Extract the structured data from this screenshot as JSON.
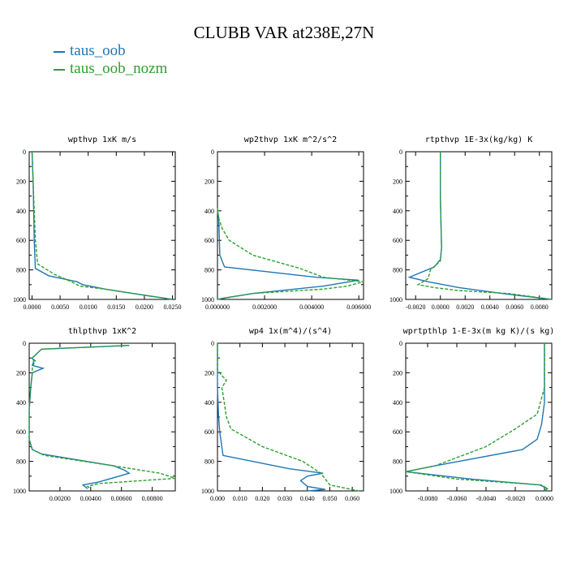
{
  "title": "CLUBB VAR at238E,27N",
  "legend": [
    {
      "name": "taus_oob",
      "color": "#1f77b4",
      "dash": "solid"
    },
    {
      "name": "taus_oob_nozm",
      "color": "#2ca02c",
      "dash": "dashed"
    }
  ],
  "chart_data": [
    {
      "type": "line",
      "title": "wpthvp  1xK m/s",
      "xlim": [
        -0.0005,
        0.0255
      ],
      "ylim": [
        1000,
        0
      ],
      "xticks": [
        0.0,
        0.005,
        0.01,
        0.015,
        0.02,
        0.025
      ],
      "xticklabels": [
        "0.0000",
        "0.0050",
        "0.0100",
        "0.0150",
        "0.0200",
        "0.0250"
      ],
      "yticks": [
        0,
        200,
        400,
        600,
        800,
        1000
      ],
      "series": [
        {
          "name": "taus_oob",
          "x": [
            0.0,
            0.0002,
            0.0003,
            0.0004,
            0.0006,
            0.003,
            0.008,
            0.009,
            0.013,
            0.018,
            0.025
          ],
          "y": [
            0,
            200,
            400,
            600,
            790,
            840,
            880,
            900,
            930,
            960,
            1000
          ]
        },
        {
          "name": "taus_oob_nozm",
          "x": [
            0.0,
            0.0002,
            0.0004,
            0.0006,
            0.001,
            0.004,
            0.007,
            0.0085,
            0.013,
            0.018,
            0.025
          ],
          "y": [
            0,
            200,
            400,
            600,
            760,
            830,
            880,
            910,
            930,
            960,
            1000
          ]
        }
      ]
    },
    {
      "type": "line",
      "title": "wp2thvp  1xK m^2/s^2",
      "xlim": [
        0,
        0.0062
      ],
      "ylim": [
        1000,
        0
      ],
      "xticks": [
        0,
        0.002,
        0.004,
        0.006
      ],
      "xticklabels": [
        "0.000000",
        "0.002000",
        "0.004000",
        "0.006000"
      ],
      "yticks": [
        0,
        200,
        400,
        600,
        800,
        1000
      ],
      "series": [
        {
          "name": "taus_oob",
          "x": [
            0.0,
            5e-05,
            0.0001,
            0.0003,
            0.0042,
            0.006,
            0.0045,
            0.0015,
            0.0003,
            0.0
          ],
          "y": [
            400,
            450,
            700,
            780,
            850,
            870,
            910,
            960,
            990,
            1000
          ]
        },
        {
          "name": "taus_oob_nozm",
          "x": [
            0.0,
            5e-05,
            0.0002,
            0.0005,
            0.0015,
            0.0035,
            0.0045,
            0.0062,
            0.0055,
            0.0045,
            0.0015,
            0.0
          ],
          "y": [
            380,
            450,
            520,
            600,
            700,
            790,
            850,
            880,
            910,
            930,
            960,
            1000
          ]
        }
      ]
    },
    {
      "type": "line",
      "title": "rtpthvp  1E-3x(kg/kg) K",
      "xlim": [
        -0.0028,
        0.009
      ],
      "ylim": [
        1000,
        0
      ],
      "xticks": [
        -0.002,
        0.0,
        0.002,
        0.004,
        0.006,
        0.008
      ],
      "xticklabels": [
        "-0.0020",
        "0.0000",
        "0.0020",
        "0.0040",
        "0.0060",
        "0.0080"
      ],
      "yticks": [
        0,
        200,
        400,
        600,
        800,
        1000
      ],
      "series": [
        {
          "name": "taus_oob",
          "x": [
            0.0,
            0.0,
            5e-05,
            0.0001,
            0.0,
            -0.0005,
            -0.0025,
            -0.001,
            0.0015,
            0.005,
            0.009
          ],
          "y": [
            0,
            300,
            500,
            650,
            730,
            780,
            850,
            880,
            920,
            960,
            1000
          ]
        },
        {
          "name": "taus_oob_nozm",
          "x": [
            0.0,
            0.0,
            5e-05,
            0.0001,
            0.0,
            -0.0008,
            -0.001,
            -0.0018,
            -0.0005,
            0.0015,
            0.0055,
            0.009
          ],
          "y": [
            0,
            300,
            500,
            650,
            740,
            800,
            860,
            900,
            920,
            940,
            960,
            1000
          ]
        }
      ]
    },
    {
      "type": "line",
      "title": "thlpthvp  1xK^2",
      "xlim": [
        0,
        0.0095
      ],
      "ylim": [
        1000,
        0
      ],
      "xticks": [
        0.002,
        0.004,
        0.006,
        0.008
      ],
      "xticklabels": [
        "0.00200",
        "0.00400",
        "0.00600",
        "0.00800"
      ],
      "yticks": [
        0,
        200,
        400,
        600,
        800,
        1000
      ],
      "series": [
        {
          "name": "taus_oob",
          "x": [
            0.0065,
            0.0008,
            0.0002,
            0.0003,
            0.0002,
            0.0009,
            0.0002,
            0.0001,
            0.0,
            0.0,
            0.0002,
            0.0008,
            0.0055,
            0.0062,
            0.0065,
            0.0045,
            0.0035,
            0.0038
          ],
          "y": [
            15,
            40,
            100,
            120,
            150,
            170,
            200,
            300,
            450,
            650,
            720,
            750,
            830,
            860,
            880,
            940,
            960,
            985
          ]
        },
        {
          "name": "taus_oob_nozm",
          "x": [
            0.0065,
            0.0008,
            0.0002,
            0.0004,
            0.0002,
            0.0002,
            0.0001,
            0.0,
            0.0,
            0.0002,
            0.001,
            0.0055,
            0.0085,
            0.0095,
            0.0045,
            0.0038,
            0.004
          ],
          "y": [
            15,
            40,
            100,
            120,
            160,
            200,
            300,
            450,
            650,
            720,
            760,
            830,
            880,
            915,
            950,
            970,
            985
          ]
        }
      ]
    },
    {
      "type": "line",
      "title": "wp4  1x(m^4)/(s^4)",
      "xlim": [
        0,
        0.065
      ],
      "ylim": [
        1000,
        0
      ],
      "xticks": [
        0,
        0.01,
        0.02,
        0.03,
        0.04,
        0.05,
        0.06
      ],
      "xticklabels": [
        "0.000",
        "0.010",
        "0.020",
        "0.030",
        "0.040",
        "0.050",
        "0.060"
      ],
      "yticks": [
        0,
        200,
        400,
        600,
        800,
        1000
      ],
      "series": [
        {
          "name": "taus_oob",
          "x": [
            0.0,
            0.0,
            0.0005,
            0.001,
            0.0025,
            0.032,
            0.047,
            0.04,
            0.037,
            0.04,
            0.048,
            0.04
          ],
          "y": [
            0,
            300,
            500,
            600,
            760,
            850,
            880,
            900,
            930,
            970,
            990,
            1000
          ]
        },
        {
          "name": "taus_oob_nozm",
          "x": [
            0.0,
            0.0,
            0.002,
            0.004,
            0.002,
            0.003,
            0.004,
            0.006,
            0.02,
            0.038,
            0.046,
            0.05,
            0.063
          ],
          "y": [
            0,
            180,
            220,
            250,
            300,
            400,
            500,
            580,
            700,
            800,
            880,
            960,
            1000
          ]
        }
      ]
    },
    {
      "type": "line",
      "title": "wprtpthlp  1-E-3x(m kg K)/(s kg)",
      "xlim": [
        -0.0095,
        0.0005
      ],
      "ylim": [
        1000,
        0
      ],
      "xticks": [
        -0.008,
        -0.006,
        -0.004,
        -0.002,
        0.0
      ],
      "xticklabels": [
        "-0.0080",
        "-0.0060",
        "-0.0040",
        "-0.0020",
        "0.0000"
      ],
      "yticks": [
        0,
        200,
        400,
        600,
        800,
        1000
      ],
      "series": [
        {
          "name": "taus_oob",
          "x": [
            0.0,
            0.0,
            -0.0002,
            -0.0005,
            -0.0015,
            -0.0075,
            -0.0095,
            -0.005,
            -0.0003,
            0.0002,
            0.0
          ],
          "y": [
            0,
            400,
            550,
            650,
            720,
            830,
            870,
            920,
            960,
            985,
            1000
          ]
        },
        {
          "name": "taus_oob_nozm",
          "x": [
            0.0,
            0.0,
            -0.0005,
            -0.002,
            -0.004,
            -0.0075,
            -0.0095,
            -0.006,
            -0.0002,
            0.0002,
            0.0
          ],
          "y": [
            0,
            300,
            480,
            580,
            700,
            830,
            870,
            920,
            960,
            985,
            1000
          ]
        }
      ]
    }
  ]
}
